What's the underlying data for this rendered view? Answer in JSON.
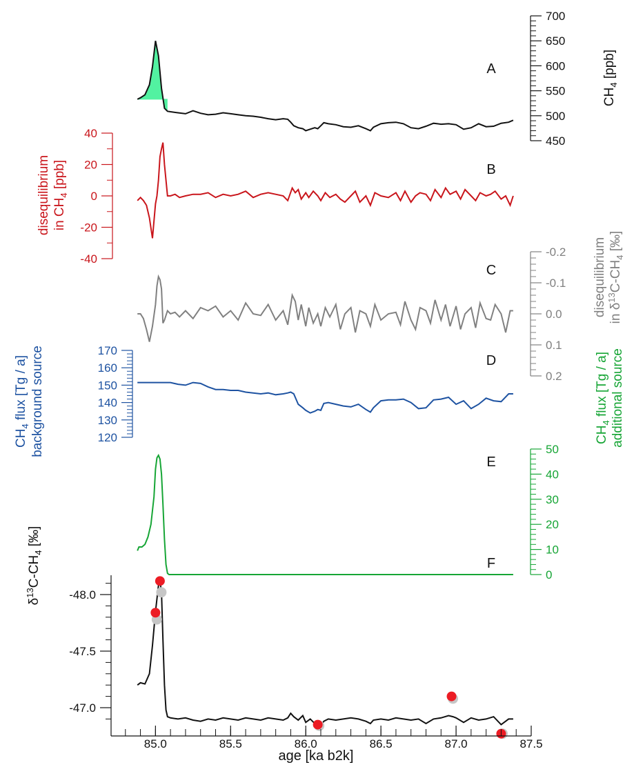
{
  "colors": {
    "black": "#111111",
    "red": "#c9151b",
    "gray": "#808080",
    "blue": "#1d52a1",
    "green": "#16a535",
    "fill_green": "#52f2a1",
    "dot_red": "#ec1c24",
    "dot_gray": "#c6c6c6"
  },
  "chart_data": [
    {
      "panel": "A",
      "type": "line",
      "ylabel": "CH4 [ppb]",
      "ylim": [
        450,
        700
      ],
      "yticks": [
        "450",
        "500",
        "550",
        "600",
        "650",
        "700"
      ],
      "axis_side": "right",
      "fill": "green area under the pulse",
      "x": [
        84.88,
        84.9,
        84.93,
        84.96,
        84.98,
        85.0,
        85.02,
        85.04,
        85.06,
        85.08,
        85.1,
        85.15,
        85.2,
        85.25,
        85.3,
        85.35,
        85.4,
        85.45,
        85.5,
        85.55,
        85.6,
        85.65,
        85.7,
        85.75,
        85.8,
        85.85,
        85.88,
        85.9,
        85.92,
        85.95,
        85.98,
        86.0,
        86.03,
        86.06,
        86.08,
        86.1,
        86.12,
        86.15,
        86.2,
        86.25,
        86.3,
        86.35,
        86.4,
        86.43,
        86.45,
        86.5,
        86.55,
        86.6,
        86.65,
        86.7,
        86.75,
        86.8,
        86.85,
        86.9,
        86.95,
        87.0,
        87.05,
        87.1,
        87.15,
        87.2,
        87.25,
        87.3,
        87.35,
        87.38
      ],
      "values": [
        533,
        536,
        542,
        562,
        598,
        650,
        620,
        555,
        515,
        509,
        508,
        506,
        504,
        510,
        505,
        502,
        503,
        506,
        504,
        502,
        500,
        499,
        497,
        494,
        492,
        494,
        493,
        487,
        480,
        476,
        474,
        470,
        473,
        476,
        474,
        480,
        486,
        484,
        482,
        478,
        477,
        480,
        474,
        470,
        477,
        484,
        486,
        487,
        484,
        476,
        474,
        479,
        485,
        483,
        484,
        482,
        473,
        476,
        484,
        478,
        479,
        485,
        487,
        491
      ]
    },
    {
      "panel": "B",
      "type": "line",
      "ylabel": "disequilibrium in CH4 [ppb]",
      "ylim": [
        -40,
        40
      ],
      "yticks": [
        "-40",
        "-20",
        "0",
        "20",
        "40"
      ],
      "axis_side": "left",
      "x": [
        84.88,
        84.9,
        84.92,
        84.94,
        84.96,
        84.98,
        85.0,
        85.01,
        85.02,
        85.03,
        85.04,
        85.05,
        85.06,
        85.08,
        85.1,
        85.13,
        85.16,
        85.2,
        85.25,
        85.3,
        85.35,
        85.4,
        85.45,
        85.5,
        85.55,
        85.6,
        85.65,
        85.7,
        85.75,
        85.8,
        85.85,
        85.88,
        85.91,
        85.93,
        85.95,
        85.97,
        86.0,
        86.02,
        86.05,
        86.08,
        86.1,
        86.13,
        86.16,
        86.2,
        86.23,
        86.26,
        86.3,
        86.33,
        86.36,
        86.4,
        86.43,
        86.46,
        86.5,
        86.55,
        86.6,
        86.63,
        86.66,
        86.7,
        86.73,
        86.76,
        86.8,
        86.83,
        86.86,
        86.9,
        86.93,
        86.96,
        87.0,
        87.03,
        87.06,
        87.1,
        87.13,
        87.16,
        87.2,
        87.23,
        87.26,
        87.3,
        87.33,
        87.36,
        87.38
      ],
      "values": [
        -3,
        -1,
        -3,
        -6,
        -14,
        -27,
        -5,
        0,
        10,
        25,
        30,
        34,
        20,
        0,
        0,
        1,
        -1,
        0,
        1,
        1,
        2,
        -1,
        1,
        0,
        1,
        3,
        -1,
        1,
        2,
        1,
        0,
        -3,
        5,
        2,
        4,
        -2,
        2,
        -1,
        3,
        0,
        -3,
        2,
        -1,
        1,
        -2,
        -4,
        0,
        3,
        -4,
        0,
        -6,
        2,
        0,
        -1,
        2,
        -3,
        3,
        -4,
        0,
        2,
        1,
        -3,
        4,
        -1,
        5,
        1,
        3,
        -2,
        4,
        0,
        -3,
        2,
        0,
        1,
        3,
        -2,
        0,
        -6,
        0
      ]
    },
    {
      "panel": "C",
      "type": "line",
      "ylabel": "disequilibrium in δ13C-CH4 [‰]",
      "ylim": [
        -0.2,
        0.2
      ],
      "yticks": [
        "-0.2",
        "-0.1",
        "0.0",
        "0.1",
        "0.2"
      ],
      "y_inverted": true,
      "axis_side": "right",
      "x": [
        84.88,
        84.9,
        84.92,
        84.94,
        84.96,
        84.98,
        85.0,
        85.01,
        85.02,
        85.03,
        85.04,
        85.05,
        85.06,
        85.08,
        85.1,
        85.13,
        85.16,
        85.2,
        85.25,
        85.3,
        85.35,
        85.4,
        85.45,
        85.5,
        85.55,
        85.6,
        85.65,
        85.7,
        85.75,
        85.8,
        85.85,
        85.88,
        85.91,
        85.93,
        85.95,
        85.97,
        86.0,
        86.02,
        86.05,
        86.08,
        86.1,
        86.13,
        86.16,
        86.2,
        86.23,
        86.26,
        86.3,
        86.33,
        86.36,
        86.4,
        86.43,
        86.46,
        86.5,
        86.55,
        86.6,
        86.63,
        86.66,
        86.7,
        86.73,
        86.76,
        86.8,
        86.83,
        86.86,
        86.9,
        86.93,
        86.96,
        87.0,
        87.03,
        87.06,
        87.1,
        87.13,
        87.16,
        87.2,
        87.23,
        87.26,
        87.3,
        87.33,
        87.36,
        87.38
      ],
      "values": [
        0.0,
        0.0,
        0.015,
        0.05,
        0.09,
        0.04,
        -0.03,
        -0.09,
        -0.12,
        -0.11,
        -0.08,
        0.03,
        0.02,
        -0.01,
        0.0,
        -0.005,
        0.01,
        -0.01,
        0.015,
        -0.02,
        -0.01,
        -0.025,
        0.01,
        -0.01,
        0.02,
        -0.035,
        0.0,
        0.005,
        -0.03,
        0.02,
        -0.01,
        0.035,
        -0.06,
        -0.04,
        0.02,
        -0.03,
        0.04,
        -0.02,
        0.03,
        0.0,
        0.04,
        -0.02,
        0.01,
        -0.03,
        0.05,
        0.0,
        -0.02,
        0.06,
        -0.01,
        0.0,
        0.04,
        -0.03,
        0.02,
        0.0,
        -0.005,
        0.035,
        -0.04,
        0.02,
        0.05,
        -0.02,
        -0.01,
        0.03,
        -0.045,
        0.02,
        -0.03,
        0.04,
        -0.025,
        0.05,
        0.0,
        -0.02,
        0.045,
        -0.035,
        0.015,
        0.02,
        -0.03,
        0.0,
        0.06,
        -0.01,
        -0.01
      ]
    },
    {
      "panel": "D",
      "type": "line",
      "ylabel": "CH4 flux [Tg / a] background source",
      "ylim": [
        120,
        170
      ],
      "yticks": [
        "120",
        "130",
        "140",
        "150",
        "160",
        "170"
      ],
      "axis_side": "left",
      "x": [
        84.88,
        85.0,
        85.1,
        85.15,
        85.2,
        85.25,
        85.3,
        85.35,
        85.4,
        85.45,
        85.5,
        85.55,
        85.6,
        85.65,
        85.7,
        85.75,
        85.8,
        85.85,
        85.88,
        85.9,
        85.92,
        85.95,
        85.98,
        86.0,
        86.03,
        86.06,
        86.08,
        86.1,
        86.12,
        86.15,
        86.2,
        86.25,
        86.3,
        86.35,
        86.4,
        86.43,
        86.45,
        86.5,
        86.55,
        86.6,
        86.65,
        86.7,
        86.75,
        86.8,
        86.85,
        86.9,
        86.95,
        87.0,
        87.05,
        87.1,
        87.15,
        87.2,
        87.25,
        87.3,
        87.35,
        87.38
      ],
      "values": [
        151.5,
        151.5,
        151.5,
        150.5,
        150,
        151.5,
        151,
        149,
        147.5,
        147.5,
        147,
        147,
        146,
        145.5,
        145,
        145.5,
        144.5,
        145,
        145.5,
        146,
        145,
        139,
        137,
        135.5,
        134,
        135,
        136,
        135.5,
        139.5,
        140,
        139,
        138,
        137.5,
        139,
        136,
        134.5,
        137,
        141,
        141.5,
        141.5,
        142,
        140,
        136.5,
        137,
        141.5,
        142,
        143,
        139,
        141,
        136.5,
        139,
        142.5,
        141,
        140.5,
        145,
        145
      ]
    },
    {
      "panel": "E",
      "type": "line",
      "ylabel": "CH4 flux [Tg / a] additional source",
      "ylim": [
        0,
        50
      ],
      "yticks": [
        "0",
        "10",
        "20",
        "30",
        "40",
        "50"
      ],
      "axis_side": "right",
      "x": [
        84.88,
        84.89,
        84.91,
        84.93,
        84.95,
        84.97,
        84.99,
        85.0,
        85.01,
        85.02,
        85.03,
        85.04,
        85.05,
        85.06,
        85.07,
        85.08,
        85.09,
        85.1,
        85.2,
        87.38
      ],
      "values": [
        9.5,
        11,
        11,
        12,
        15,
        20,
        31,
        42,
        46.5,
        47.5,
        46,
        40,
        28,
        14,
        4,
        0.5,
        0,
        0,
        0,
        0
      ]
    },
    {
      "panel": "F",
      "type": "line",
      "title": "",
      "xlabel": "age [ka b2k]",
      "ylabel": "δ13C-CH4 [‰]",
      "ylim": [
        -46.8,
        -48.2
      ],
      "y_inverted": true,
      "yticks": [
        "-48.0",
        "-47.5",
        "-47.0"
      ],
      "axis_side": "left",
      "xlim": [
        84.7,
        87.5
      ],
      "xticks": [
        "85.0",
        "85.5",
        "86.0",
        "86.5",
        "87.0",
        "87.5"
      ],
      "x": [
        84.88,
        84.9,
        84.93,
        84.96,
        84.98,
        85.0,
        85.02,
        85.03,
        85.04,
        85.05,
        85.06,
        85.07,
        85.08,
        85.1,
        85.15,
        85.2,
        85.25,
        85.3,
        85.35,
        85.4,
        85.45,
        85.5,
        85.55,
        85.6,
        85.65,
        85.7,
        85.75,
        85.8,
        85.85,
        85.88,
        85.9,
        85.92,
        85.95,
        85.98,
        86.0,
        86.03,
        86.06,
        86.08,
        86.1,
        86.12,
        86.15,
        86.2,
        86.25,
        86.3,
        86.35,
        86.4,
        86.43,
        86.45,
        86.5,
        86.55,
        86.6,
        86.65,
        86.7,
        86.75,
        86.8,
        86.85,
        86.9,
        86.95,
        86.98,
        87.0,
        87.05,
        87.1,
        87.15,
        87.2,
        87.25,
        87.3,
        87.35,
        87.38
      ],
      "values": [
        -47.2,
        -47.22,
        -47.21,
        -47.3,
        -47.55,
        -47.85,
        -48.08,
        -48.12,
        -48.02,
        -47.6,
        -47.2,
        -46.98,
        -46.92,
        -46.91,
        -46.9,
        -46.91,
        -46.89,
        -46.88,
        -46.9,
        -46.89,
        -46.91,
        -46.9,
        -46.89,
        -46.91,
        -46.9,
        -46.89,
        -46.91,
        -46.9,
        -46.89,
        -46.91,
        -46.95,
        -46.92,
        -46.89,
        -46.93,
        -46.87,
        -46.9,
        -46.86,
        -46.87,
        -46.84,
        -46.88,
        -46.9,
        -46.89,
        -46.9,
        -46.91,
        -46.9,
        -46.88,
        -46.86,
        -46.89,
        -46.9,
        -46.89,
        -46.91,
        -46.9,
        -46.89,
        -46.9,
        -46.86,
        -46.9,
        -46.91,
        -46.93,
        -46.92,
        -46.91,
        -46.87,
        -46.91,
        -46.89,
        -46.9,
        -46.92,
        -46.85,
        -46.9,
        -46.9
      ],
      "markers_measured": {
        "x": [
          85.0,
          85.03,
          86.08,
          86.97,
          87.3
        ],
        "values": [
          -47.84,
          -48.12,
          -46.85,
          -47.1,
          -46.77
        ]
      },
      "markers_model": {
        "x": [
          85.0,
          85.03,
          86.08,
          86.97,
          87.3
        ],
        "values": [
          -47.78,
          -48.02,
          -46.84,
          -47.08,
          -46.77
        ]
      }
    }
  ],
  "labels": {
    "panel_a": "A",
    "panel_b": "B",
    "panel_c": "C",
    "panel_d": "D",
    "panel_e": "E",
    "panel_f": "F",
    "xlabel": "age [ka b2k]",
    "a_ylabel_main": "CH",
    "a_ylabel_sub": "4",
    "a_ylabel_tail": " [ppb]",
    "b_ylabel_line1": "disequilibrium",
    "b_ylabel_line2_main": "in CH",
    "b_ylabel_line2_sub": "4",
    "b_ylabel_line2_tail": " [ppb]",
    "c_ylabel_line1": "disequilibrium",
    "c_ylabel_line2_pre": "in δ",
    "c_ylabel_line2_sup": "13",
    "c_ylabel_line2_mid": "C-CH",
    "c_ylabel_line2_sub": "4",
    "c_ylabel_line2_tail": "  [‰]",
    "d_ylabel_line1_main": "CH",
    "d_ylabel_line1_sub": "4",
    "d_ylabel_line1_tail": " flux [Tg / a]",
    "d_ylabel_line2": "background source",
    "e_ylabel_line1_main": "CH",
    "e_ylabel_line1_sub": "4",
    "e_ylabel_line1_tail": " flux [Tg / a]",
    "e_ylabel_line2": "additional source",
    "f_ylabel_pre": "δ",
    "f_ylabel_sup": "13",
    "f_ylabel_mid": "C-CH",
    "f_ylabel_sub": "4",
    "f_ylabel_tail": " [‰]"
  }
}
